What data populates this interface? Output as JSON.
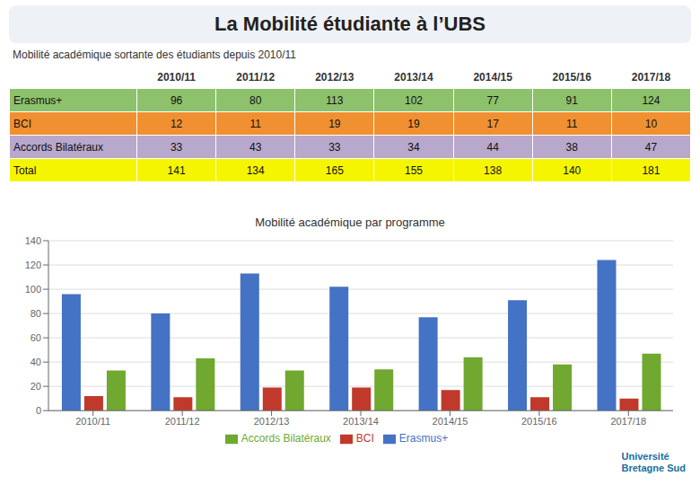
{
  "chart_data": [
    {
      "type": "table",
      "title": "La Mobilité étudiante à l’UBS",
      "subtitle": "Mobilité académique sortante des étudiants depuis 2010/11",
      "categories": [
        "2010/11",
        "2011/12",
        "2012/13",
        "2013/14",
        "2014/15",
        "2015/16",
        "2017/18"
      ],
      "series": [
        {
          "name": "Erasmus+",
          "color": "#8dc16c",
          "values": [
            96,
            80,
            113,
            102,
            77,
            91,
            124
          ]
        },
        {
          "name": "BCI",
          "color": "#f09030",
          "values": [
            12,
            11,
            19,
            19,
            17,
            11,
            10
          ]
        },
        {
          "name": "Accords Bilatéraux",
          "color": "#b8a8cc",
          "values": [
            33,
            43,
            33,
            34,
            44,
            38,
            47
          ]
        },
        {
          "name": "Total",
          "color": "#f5f500",
          "values": [
            141,
            134,
            165,
            155,
            138,
            140,
            181
          ]
        }
      ]
    },
    {
      "type": "bar",
      "title": "Mobilité académique par programme",
      "categories": [
        "2010/11",
        "2011/12",
        "2012/13",
        "2013/14",
        "2014/15",
        "2015/16",
        "2017/18"
      ],
      "series": [
        {
          "name": "Erasmus+",
          "color": "#4472c4",
          "values": [
            96,
            80,
            113,
            102,
            77,
            91,
            124
          ]
        },
        {
          "name": "BCI",
          "color": "#c0392b",
          "values": [
            12,
            11,
            19,
            19,
            17,
            11,
            10
          ]
        },
        {
          "name": "Accords Bilatéraux",
          "color": "#70a830",
          "values": [
            33,
            43,
            33,
            34,
            44,
            38,
            47
          ]
        }
      ],
      "ylim": [
        0,
        140
      ],
      "yticks": [
        0,
        20,
        40,
        60,
        80,
        100,
        120,
        140
      ],
      "grid": true,
      "legend": "bottom",
      "annotations": [
        "Université\nBretagne Sud"
      ]
    }
  ]
}
